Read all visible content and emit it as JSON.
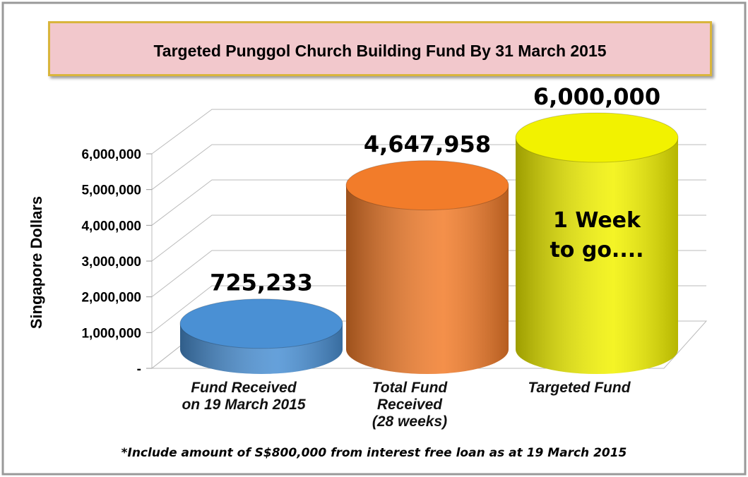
{
  "chart_data": {
    "type": "bar",
    "title": "Targeted Punggol Church Building Fund By 31 March 2015",
    "ylabel": "Singapore Dollars",
    "categories": [
      "Fund Received\non 19 March 2015",
      "Total Fund\nReceived\n(28 weeks)",
      "Targeted Fund"
    ],
    "values": [
      725233,
      4647958,
      6000000
    ],
    "value_labels": [
      "725,233",
      "4,647,958",
      "6,000,000"
    ],
    "colors": [
      "#4a90d4",
      "#f27c2a",
      "#f2f200"
    ],
    "ylim": [
      0,
      6000000
    ],
    "yticks": [
      {
        "value": 0,
        "label": "-"
      },
      {
        "value": 1000000,
        "label": "1,000,000"
      },
      {
        "value": 2000000,
        "label": "2,000,000"
      },
      {
        "value": 3000000,
        "label": "3,000,000"
      },
      {
        "value": 4000000,
        "label": "4,000,000"
      },
      {
        "value": 5000000,
        "label": "5,000,000"
      },
      {
        "value": 6000000,
        "label": "6,000,000"
      }
    ],
    "grid": true,
    "annotation": "1 Week\nto go....",
    "footnote": "*Include amount of S$800,000 from interest free loan as at 19 March 2015"
  }
}
